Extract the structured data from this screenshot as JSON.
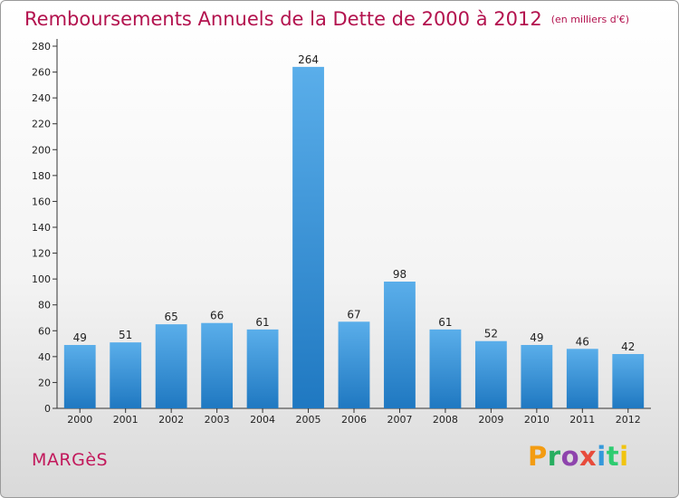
{
  "header": {
    "title": "Remboursements Annuels de la Dette de 2000 à 2012",
    "unit": "(en milliers d'€)"
  },
  "footer": {
    "commune": "MARGèS",
    "logo": "Proxiti",
    "logo_colors": [
      "#f39c12",
      "#27ae60",
      "#8e44ad",
      "#e74c3c",
      "#3498db",
      "#2ecc71",
      "#f1c40f"
    ]
  },
  "chart_data": {
    "type": "bar",
    "title": "Remboursements Annuels de la Dette de 2000 à 2012",
    "subtitle": "(en milliers d'€)",
    "categories": [
      "2000",
      "2001",
      "2002",
      "2003",
      "2004",
      "2005",
      "2006",
      "2007",
      "2008",
      "2009",
      "2010",
      "2011",
      "2012"
    ],
    "values": [
      49,
      51,
      65,
      66,
      61,
      264,
      67,
      98,
      61,
      52,
      49,
      46,
      42
    ],
    "ylim": [
      0,
      280
    ],
    "yticks": [
      0,
      20,
      40,
      60,
      80,
      100,
      120,
      140,
      160,
      180,
      200,
      220,
      240,
      260,
      280
    ],
    "grid": false,
    "bar_color": "#3f9fe0",
    "xlabel": "",
    "ylabel": ""
  }
}
